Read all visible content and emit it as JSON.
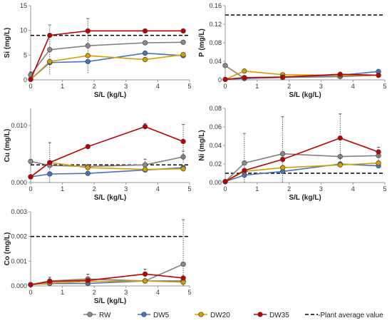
{
  "colors": {
    "RW": "#808080",
    "DW5": "#4472c4",
    "DW20": "#d4a000",
    "DW35": "#c00000",
    "ref": "#000000",
    "gray_marker": "#8a8a8a"
  },
  "legend": {
    "items": [
      {
        "key": "RW",
        "label": "RW"
      },
      {
        "key": "DW5",
        "label": "DW5"
      },
      {
        "key": "DW20",
        "label": "DW20"
      },
      {
        "key": "DW35",
        "label": "DW35"
      }
    ],
    "ref_label": "-Plant average value",
    "placement": "bottom"
  },
  "chart_data": [
    {
      "type": "line",
      "xlabel": "S/L (kg/L)",
      "ylabel": "Si (mg/L)",
      "xlim": [
        0,
        5
      ],
      "ylim": [
        0,
        15
      ],
      "xticks": [
        "0",
        "1",
        "2",
        "3",
        "4",
        "5"
      ],
      "yticks": [
        "0",
        "5",
        "10",
        "15"
      ],
      "x": [
        0,
        0.6,
        1.8,
        3.6,
        4.8
      ],
      "ref": 9,
      "series": [
        {
          "key": "RW",
          "values": [
            1.0,
            6.1,
            6.9,
            7.5,
            7.6
          ],
          "err": [
            0.6,
            5.0,
            5.5,
            0,
            0.4
          ]
        },
        {
          "key": "DW5",
          "values": [
            0.1,
            3.5,
            3.7,
            5.4,
            4.9
          ],
          "err": [
            0,
            0,
            0,
            0,
            0
          ]
        },
        {
          "key": "DW20",
          "values": [
            0.1,
            3.7,
            4.9,
            4.1,
            5.1
          ],
          "err": [
            0,
            0,
            0,
            0,
            0
          ]
        },
        {
          "key": "DW35",
          "values": [
            0.1,
            9.0,
            9.9,
            9.9,
            9.9
          ],
          "err": [
            0,
            0,
            0,
            0,
            0
          ]
        }
      ]
    },
    {
      "type": "line",
      "xlabel": "S/L (kg/L)",
      "ylabel": "P (mg/L)",
      "xlim": [
        0,
        5
      ],
      "ylim": [
        0,
        0.16
      ],
      "xticks": [
        "0",
        "1",
        "2",
        "3",
        "4",
        "5"
      ],
      "yticks": [
        "0",
        "0.04",
        "0.08",
        "0.12",
        "0.16"
      ],
      "x": [
        0,
        0.6,
        1.8,
        3.6,
        4.8
      ],
      "ref": 0.14,
      "series": [
        {
          "key": "RW",
          "values": [
            0.031,
            0.003,
            0.005,
            0.007,
            0.01
          ],
          "err": [
            0,
            0,
            0,
            0,
            0
          ]
        },
        {
          "key": "DW5",
          "values": [
            0.001,
            0.003,
            0.006,
            0.01,
            0.018
          ],
          "err": [
            0,
            0,
            0,
            0,
            0
          ]
        },
        {
          "key": "DW20",
          "values": [
            0.001,
            0.019,
            0.011,
            0.01,
            0.01
          ],
          "err": [
            0,
            0,
            0,
            0,
            0
          ]
        },
        {
          "key": "DW35",
          "values": [
            0.001,
            0.005,
            0.006,
            0.012,
            0.01
          ],
          "err": [
            0,
            0,
            0,
            0,
            0
          ]
        }
      ]
    },
    {
      "type": "line",
      "xlabel": "S/L (kg/L)",
      "ylabel": "Cu (mg/L)",
      "xlim": [
        0,
        5
      ],
      "ylim": [
        0,
        0.013
      ],
      "xticks": [
        "0",
        "1",
        "2",
        "3",
        "4",
        "5"
      ],
      "yticks": [
        "0.000",
        "0.010"
      ],
      "ytick_values": [
        0,
        0.01
      ],
      "x": [
        0,
        0.6,
        1.8,
        3.6,
        4.8
      ],
      "ref": 0.0031,
      "series": [
        {
          "key": "RW",
          "values": [
            0.0037,
            0.003,
            0.0028,
            0.0031,
            0.0045
          ],
          "err": [
            0,
            0.004,
            0,
            0.001,
            0.001
          ]
        },
        {
          "key": "DW5",
          "values": [
            0.001,
            0.0015,
            0.0016,
            0.0022,
            0.0026
          ],
          "err": [
            0,
            0,
            0,
            0,
            0
          ]
        },
        {
          "key": "DW20",
          "values": [
            0.001,
            0.0035,
            0.0026,
            0.0023,
            0.0024
          ],
          "err": [
            0,
            0,
            0,
            0,
            0
          ]
        },
        {
          "key": "DW35",
          "values": [
            0.001,
            0.0035,
            0.0063,
            0.0098,
            0.0072
          ],
          "err": [
            0,
            0,
            0,
            0.0005,
            0.003
          ]
        }
      ]
    },
    {
      "type": "line",
      "xlabel": "S/L (kg/L)",
      "ylabel": "Ni (mg/L)",
      "xlim": [
        0,
        5
      ],
      "ylim": [
        0,
        0.08
      ],
      "xticks": [
        "0",
        "1",
        "2",
        "3",
        "4",
        "5"
      ],
      "yticks": [
        "0.00",
        "0.02",
        "0.04",
        "0.06",
        "0.08"
      ],
      "x": [
        0,
        0.6,
        1.8,
        3.6,
        4.8
      ],
      "ref": 0.01,
      "series": [
        {
          "key": "RW",
          "values": [
            0.001,
            0.021,
            0.031,
            0.028,
            0.029
          ],
          "err": [
            0,
            0.032,
            0.04,
            0,
            0.005
          ]
        },
        {
          "key": "DW5",
          "values": [
            0.001,
            0.008,
            0.012,
            0.02,
            0.018
          ],
          "err": [
            0,
            0,
            0,
            0,
            0
          ]
        },
        {
          "key": "DW20",
          "values": [
            0.001,
            0.012,
            0.016,
            0.019,
            0.021
          ],
          "err": [
            0,
            0,
            0,
            0,
            0
          ]
        },
        {
          "key": "DW35",
          "values": [
            0.001,
            0.013,
            0.025,
            0.048,
            0.033
          ],
          "err": [
            0,
            0,
            0,
            0.026,
            0.005
          ]
        }
      ]
    },
    {
      "type": "line",
      "xlabel": "S/L (kg/L)",
      "ylabel": "Co (mg/L)",
      "xlim": [
        0,
        5
      ],
      "ylim": [
        0,
        0.003
      ],
      "xticks": [
        "0",
        "1",
        "2",
        "3",
        "4",
        "5"
      ],
      "yticks": [
        "0.000",
        "0.001",
        "0.002",
        "0.003"
      ],
      "x": [
        0,
        0.6,
        1.8,
        3.6,
        4.8
      ],
      "ref": 0.002,
      "series": [
        {
          "key": "RW",
          "values": [
            5e-05,
            0.0002,
            0.00028,
            0.0002,
            0.00088
          ],
          "err": [
            0,
            0.00015,
            0.0002,
            0,
            0.0018
          ]
        },
        {
          "key": "DW5",
          "values": [
            5e-05,
            0.0001,
            0.0001,
            0.0002,
            0.0002
          ],
          "err": [
            0,
            0,
            0,
            0,
            0
          ]
        },
        {
          "key": "DW20",
          "values": [
            5e-05,
            0.00012,
            0.00018,
            0.0002,
            0.00015
          ],
          "err": [
            0,
            0,
            0,
            0,
            0
          ]
        },
        {
          "key": "DW35",
          "values": [
            5e-05,
            0.00018,
            0.00022,
            0.00048,
            0.00032
          ],
          "err": [
            0,
            0,
            0,
            0.0002,
            0
          ]
        }
      ]
    }
  ]
}
